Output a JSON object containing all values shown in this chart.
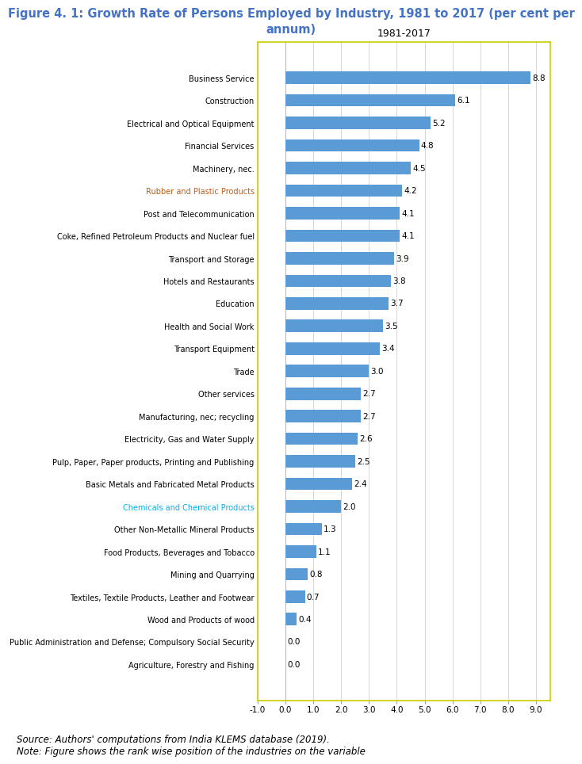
{
  "title_line1": "Figure 4. 1: Growth Rate of Persons Employed by Industry, 1981 to 2017 (per cent per",
  "title_line2": "annum)",
  "subtitle": "1981-2017",
  "source_line1": "Source: Authors' computations from India KLEMS database (2019).",
  "source_line2": "Note: Figure shows the rank wise position of the industries on the variable",
  "categories": [
    "Business Service",
    "Construction",
    "Electrical and Optical Equipment",
    "Financial Services",
    "Machinery, nec.",
    "Rubber and Plastic Products",
    "Post and Telecommunication",
    "Coke, Refined Petroleum Products and Nuclear fuel",
    "Transport and Storage",
    "Hotels and Restaurants",
    "Education",
    "Health and Social Work",
    "Transport Equipment",
    "Trade",
    "Other services",
    "Manufacturing, nec; recycling",
    "Electricity, Gas and Water Supply",
    "Pulp, Paper, Paper products, Printing and Publishing",
    "Basic Metals and Fabricated Metal Products",
    "Chemicals and Chemical Products",
    "Other Non-Metallic Mineral Products",
    "Food Products, Beverages and Tobacco",
    "Mining and Quarrying",
    "Textiles, Textile Products, Leather and Footwear",
    "Wood and Products of wood",
    "Public Administration and Defense; Compulsory Social Security",
    "Agriculture, Forestry and Fishing"
  ],
  "values": [
    8.8,
    6.1,
    5.2,
    4.8,
    4.5,
    4.2,
    4.1,
    4.1,
    3.9,
    3.8,
    3.7,
    3.5,
    3.4,
    3.0,
    2.7,
    2.7,
    2.6,
    2.5,
    2.4,
    2.0,
    1.3,
    1.1,
    0.8,
    0.7,
    0.4,
    0.0,
    0.0
  ],
  "bar_color": "#5B9BD5",
  "label_colors": [
    "#000000",
    "#000000",
    "#000000",
    "#000000",
    "#000000",
    "#C55A11",
    "#000000",
    "#000000",
    "#000000",
    "#000000",
    "#000000",
    "#000000",
    "#000000",
    "#000000",
    "#000000",
    "#000000",
    "#000000",
    "#000000",
    "#000000",
    "#00B0F0",
    "#000000",
    "#000000",
    "#000000",
    "#000000",
    "#000000",
    "#000000",
    "#000000"
  ],
  "xlim": [
    -1.0,
    9.5
  ],
  "xticks": [
    -1.0,
    0.0,
    1.0,
    2.0,
    3.0,
    4.0,
    5.0,
    6.0,
    7.0,
    8.0,
    9.0
  ],
  "title_color": "#4472C4",
  "title_fontsize": 10.5,
  "subtitle_fontsize": 9,
  "bar_label_fontsize": 7.5,
  "ytick_fontsize": 7.0,
  "xtick_fontsize": 7.5,
  "source_fontsize": 8.5,
  "bar_height": 0.55
}
